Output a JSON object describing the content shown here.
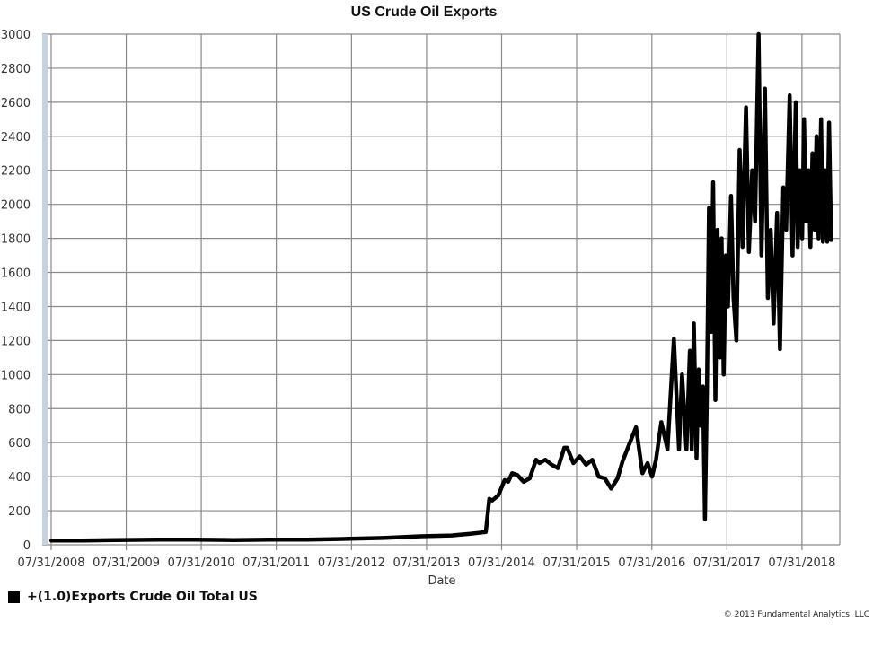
{
  "chart_data": {
    "type": "line",
    "title": "US Crude Oil Exports",
    "xlabel": "Date",
    "ylabel": "",
    "ylim": [
      0,
      3000
    ],
    "y_ticks": [
      0,
      200,
      400,
      600,
      800,
      1000,
      1200,
      1400,
      1600,
      1800,
      2000,
      2200,
      2400,
      2600,
      2800,
      3000
    ],
    "x_ticks": [
      "07/31/2008",
      "07/31/2009",
      "07/31/2010",
      "07/31/2011",
      "07/31/2012",
      "07/31/2013",
      "07/31/2014",
      "07/31/2015",
      "07/31/2016",
      "07/31/2017",
      "07/31/2018"
    ],
    "xlim": [
      "07/31/2008",
      "01/31/2019"
    ],
    "grid": true,
    "legend_position": "bottom-left",
    "colors": {
      "line": "#000000",
      "grid": "#8a8a8a",
      "left_bar": "#c5d3e0"
    },
    "series": [
      {
        "name": "+(1.0)Exports Crude Oil Total US",
        "x": [
          "2008-08-01",
          "2009-01-01",
          "2009-06-01",
          "2010-01-01",
          "2010-07-01",
          "2011-01-01",
          "2011-07-01",
          "2012-01-01",
          "2012-07-01",
          "2013-01-01",
          "2013-07-01",
          "2013-12-01",
          "2014-03-01",
          "2014-05-15",
          "2014-06-01",
          "2014-06-15",
          "2014-07-15",
          "2014-08-15",
          "2014-09-01",
          "2014-09-20",
          "2014-10-15",
          "2014-11-15",
          "2014-12-15",
          "2015-01-15",
          "2015-02-01",
          "2015-03-01",
          "2015-04-01",
          "2015-05-01",
          "2015-06-01",
          "2015-06-15",
          "2015-07-15",
          "2015-08-15",
          "2015-09-15",
          "2015-10-15",
          "2015-11-15",
          "2015-12-15",
          "2016-01-15",
          "2016-02-15",
          "2016-03-10",
          "2016-04-15",
          "2016-05-15",
          "2016-06-15",
          "2016-07-10",
          "2016-08-01",
          "2016-08-20",
          "2016-09-15",
          "2016-10-15",
          "2016-11-15",
          "2016-12-10",
          "2016-12-25",
          "2017-01-15",
          "2017-02-01",
          "2017-02-10",
          "2017-02-20",
          "2017-03-05",
          "2017-03-15",
          "2017-03-25",
          "2017-04-05",
          "2017-04-15",
          "2017-04-25",
          "2017-05-05",
          "2017-05-15",
          "2017-05-25",
          "2017-06-05",
          "2017-06-15",
          "2017-06-25",
          "2017-07-05",
          "2017-07-15",
          "2017-07-25",
          "2017-08-05",
          "2017-08-20",
          "2017-09-01",
          "2017-09-15",
          "2017-10-01",
          "2017-10-15",
          "2017-11-01",
          "2017-11-15",
          "2017-12-01",
          "2017-12-15",
          "2018-01-01",
          "2018-01-15",
          "2018-02-01",
          "2018-02-15",
          "2018-03-01",
          "2018-03-15",
          "2018-04-01",
          "2018-04-15",
          "2018-05-01",
          "2018-05-15",
          "2018-06-01",
          "2018-06-15",
          "2018-07-01",
          "2018-07-10",
          "2018-07-20",
          "2018-08-01",
          "2018-08-10",
          "2018-08-20",
          "2018-09-01",
          "2018-09-10",
          "2018-09-20",
          "2018-10-01",
          "2018-10-10",
          "2018-10-20",
          "2018-11-01",
          "2018-11-10",
          "2018-11-20",
          "2018-12-01",
          "2018-12-10",
          "2018-12-20"
        ],
        "values": [
          25,
          25,
          28,
          30,
          30,
          28,
          30,
          30,
          35,
          40,
          50,
          55,
          65,
          75,
          270,
          260,
          290,
          380,
          370,
          420,
          410,
          370,
          390,
          500,
          480,
          500,
          470,
          450,
          570,
          570,
          480,
          520,
          470,
          500,
          400,
          390,
          330,
          390,
          490,
          600,
          690,
          420,
          480,
          400,
          500,
          720,
          560,
          1210,
          560,
          1000,
          560,
          1140,
          560,
          1300,
          510,
          1030,
          700,
          930,
          150,
          900,
          1980,
          1250,
          2130,
          850,
          1850,
          1100,
          1800,
          1000,
          1700,
          1400,
          2050,
          1450,
          1200,
          2320,
          1750,
          2570,
          1720,
          2200,
          1900,
          3000,
          1700,
          2680,
          1450,
          1850,
          1300,
          1950,
          1150,
          2100,
          1850,
          2640,
          1700,
          2600,
          1750,
          2200,
          1800,
          2500,
          1900,
          2200,
          1750,
          2300,
          1850,
          2400,
          1800,
          2500,
          1780,
          2200,
          1780,
          2480,
          1790
        ]
      }
    ]
  },
  "legend": {
    "label": "+(1.0)Exports Crude Oil Total US"
  },
  "footer": {
    "copyright": "© 2013 Fundamental Analytics, LLC"
  }
}
